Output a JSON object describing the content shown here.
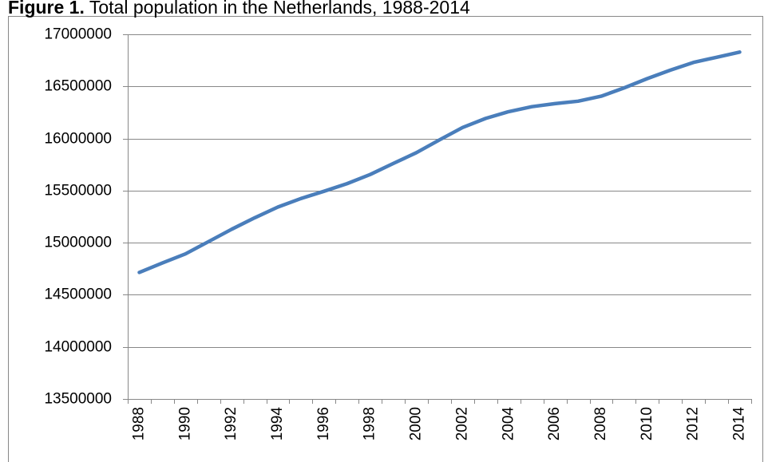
{
  "chart_data": {
    "type": "line",
    "title_prefix": "Figure 1.",
    "title": "Total population in the Netherlands, 1988-2014",
    "categories": [
      "1988",
      null,
      "1990",
      null,
      "1992",
      null,
      "1994",
      null,
      "1996",
      null,
      "1998",
      null,
      "2000",
      null,
      "2002",
      null,
      "2004",
      null,
      "2006",
      null,
      "2008",
      null,
      "2010",
      null,
      "2012",
      null,
      "2014"
    ],
    "series": [
      {
        "name": "Total population",
        "color": "#4a7ebb",
        "values": [
          14714948,
          14805240,
          14892574,
          15010445,
          15129150,
          15239182,
          15341553,
          15424122,
          15493889,
          15567107,
          15654192,
          15760225,
          15863950,
          15987075,
          16105285,
          16192572,
          16258032,
          16305526,
          16334210,
          16357992,
          16405399,
          16485787,
          16574989,
          16655799,
          16730348,
          16779575,
          16829289
        ]
      }
    ],
    "ylim": [
      13500000,
      17000000
    ],
    "yticks": [
      13500000,
      14000000,
      14500000,
      15000000,
      15500000,
      16000000,
      16500000,
      17000000
    ],
    "grid": true
  }
}
